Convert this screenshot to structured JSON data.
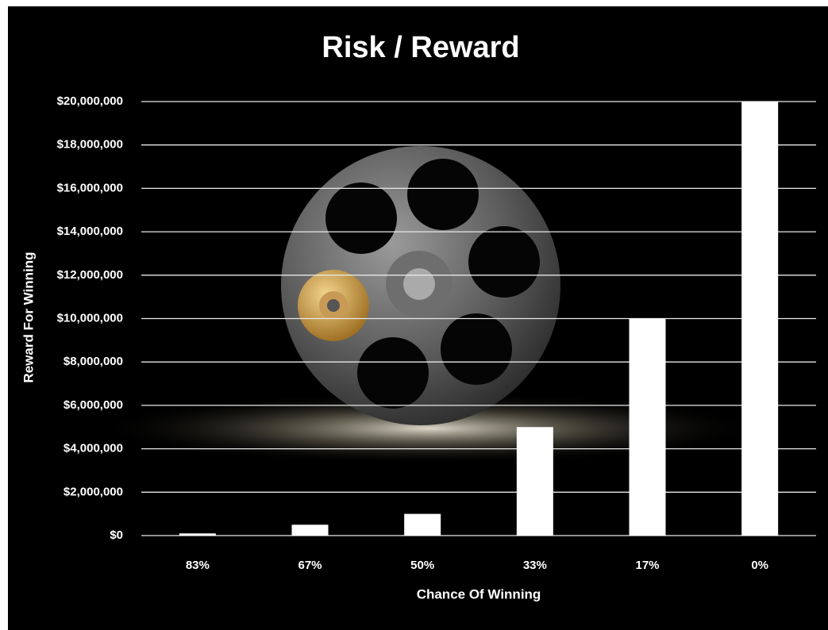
{
  "chart_data": {
    "type": "bar",
    "title": "Risk / Reward",
    "x_label": "Chance Of Winning",
    "y_label": "Reward For Winning",
    "categories": [
      "83%",
      "67%",
      "50%",
      "33%",
      "17%",
      "0%"
    ],
    "values": [
      100000,
      500000,
      1000000,
      5000000,
      10000000,
      20000000
    ],
    "color": "#ffffff",
    "ylim": [
      0,
      20000000
    ],
    "yticks": [
      {
        "value": 0,
        "label": "$0"
      },
      {
        "value": 2000000,
        "label": "$2,000,000"
      },
      {
        "value": 4000000,
        "label": "$4,000,000"
      },
      {
        "value": 6000000,
        "label": "$6,000,000"
      },
      {
        "value": 8000000,
        "label": "$8,000,000"
      },
      {
        "value": 10000000,
        "label": "$10,000,000"
      },
      {
        "value": 12000000,
        "label": "$12,000,000"
      },
      {
        "value": 14000000,
        "label": "$14,000,000"
      },
      {
        "value": 16000000,
        "label": "$16,000,000"
      },
      {
        "value": 18000000,
        "label": "$18,000,000"
      },
      {
        "value": 20000000,
        "label": "$20,000,000"
      }
    ],
    "grid": true
  }
}
